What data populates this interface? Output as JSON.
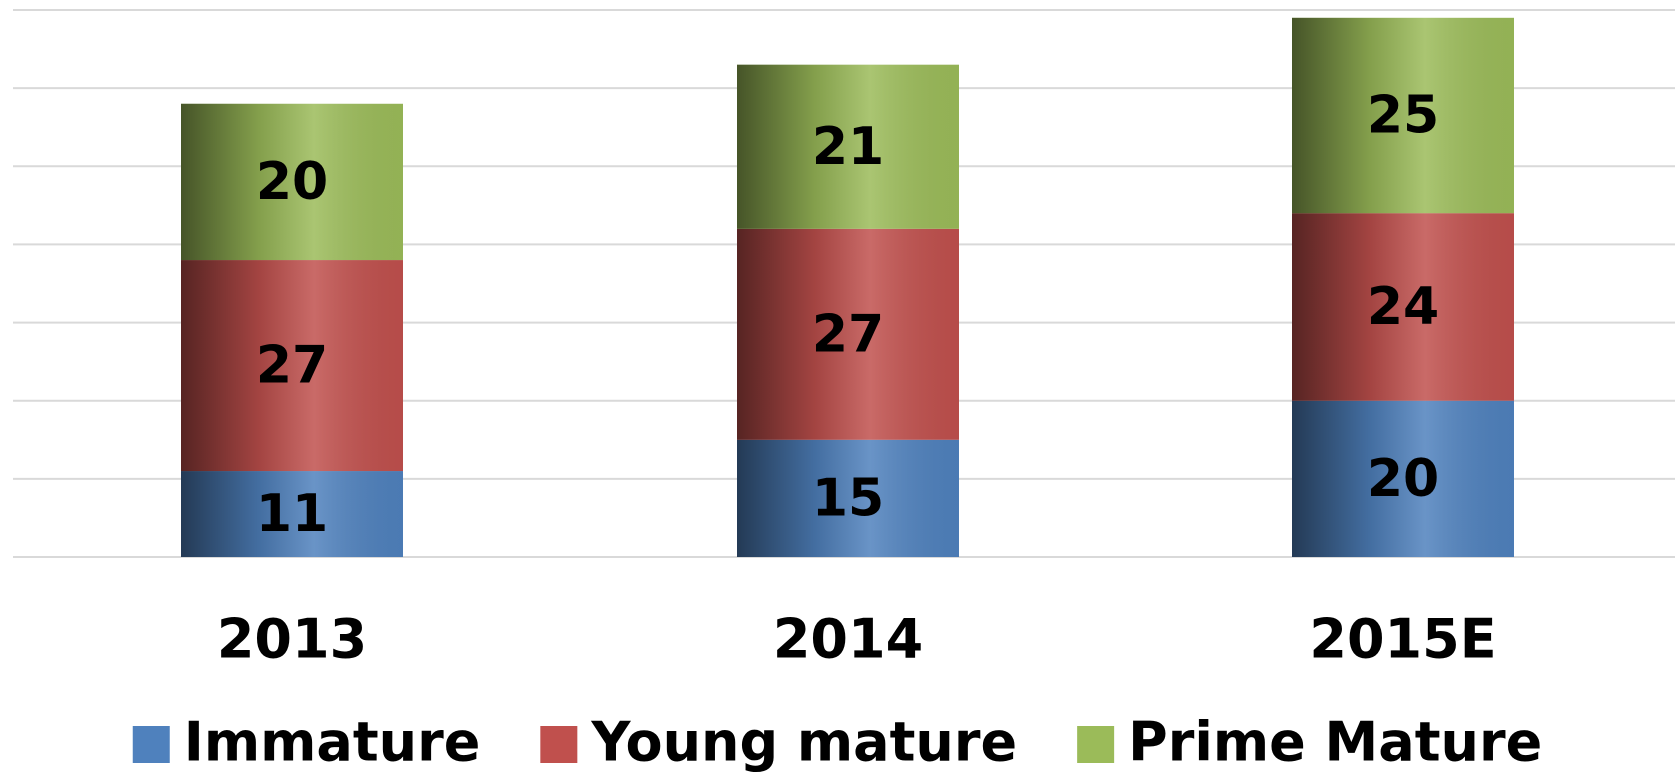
{
  "chart_data": {
    "type": "stacked_bar",
    "categories": [
      "2013",
      "2014",
      "2015E"
    ],
    "series": [
      {
        "name": "Immature",
        "color": "#4f81bd",
        "values": [
          11,
          15,
          20
        ]
      },
      {
        "name": "Young mature",
        "color": "#c0504d",
        "values": [
          27,
          27,
          24
        ]
      },
      {
        "name": "Prime Mature",
        "color": "#9bbb59",
        "values": [
          20,
          21,
          25
        ]
      }
    ],
    "ylim": [
      0,
      70
    ],
    "yticks": [
      0,
      10,
      20,
      30,
      40,
      50,
      60,
      70
    ],
    "grid": true,
    "legend": "bottom"
  }
}
